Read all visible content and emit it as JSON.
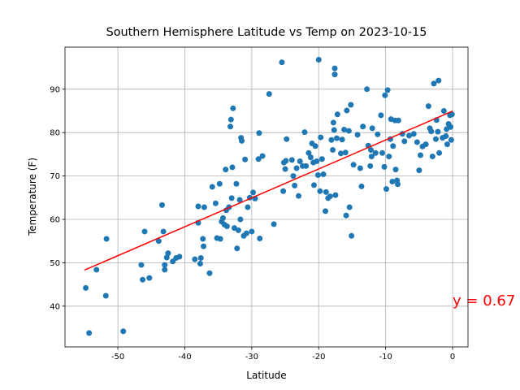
{
  "chart_data": {
    "type": "scatter",
    "title": "Southern Hemisphere Latitude vs Temp on 2023-10-15",
    "x_label": "Latitude",
    "y_label": "Temperature (F)",
    "xlim": [
      -57.9,
      2.3
    ],
    "ylim": [
      30.6,
      99.7
    ],
    "xticks": [
      -50,
      -40,
      -30,
      -20,
      -10,
      0
    ],
    "yticks": [
      40,
      50,
      60,
      70,
      80,
      90
    ],
    "grid": true,
    "color": "#1f77b4",
    "x": [
      -54.8,
      -54.3,
      -53.2,
      -51.7,
      -51.8,
      -49.2,
      -46.5,
      -46.3,
      -46,
      -45.3,
      -43.9,
      -43.4,
      -43.2,
      -43,
      -43,
      -42.7,
      -42.5,
      -41.8,
      -41.3,
      -40.8,
      -38.5,
      -38,
      -38,
      -37.7,
      -37.6,
      -37.3,
      -37.2,
      -37.1,
      -36.3,
      -35.9,
      -35.4,
      -35.2,
      -34.8,
      -34.7,
      -34.5,
      -34.3,
      -34.1,
      -33.9,
      -33.8,
      -33.7,
      -33.4,
      -33.2,
      -33.1,
      -33,
      -32.9,
      -32.8,
      -32.6,
      -32.3,
      -32.2,
      -32,
      -31.8,
      -31.7,
      -31.6,
      -31.5,
      -31.2,
      -31,
      -30.8,
      -30.6,
      -30.3,
      -30,
      -29.8,
      -29.5,
      -29,
      -28.9,
      -28.8,
      -28.4,
      -27.4,
      -26.7,
      -25.5,
      -25.3,
      -25.2,
      -25,
      -24.9,
      -24.8,
      -24,
      -23.8,
      -23.6,
      -23.3,
      -23,
      -22.8,
      -22.4,
      -22.1,
      -21.9,
      -21.5,
      -21.2,
      -21,
      -20.8,
      -20.7,
      -20.5,
      -20.3,
      -20.1,
      -20,
      -19.8,
      -19.7,
      -19.5,
      -19.3,
      -19,
      -18.9,
      -18.6,
      -18.3,
      -18.1,
      -17.9,
      -17.8,
      -17.7,
      -17.6,
      -17.6,
      -17.5,
      -17.3,
      -17.2,
      -16.7,
      -16.5,
      -16.2,
      -16,
      -15.9,
      -15.8,
      -15.5,
      -15.4,
      -15.2,
      -15.1,
      -14.8,
      -14.2,
      -13.8,
      -13.6,
      -13.4,
      -12.8,
      -12.6,
      -12.3,
      -12.2,
      -12.1,
      -12,
      -11.5,
      -11.2,
      -10.7,
      -10.5,
      -10.2,
      -10.1,
      -9.9,
      -9.7,
      -9.5,
      -9.3,
      -9.2,
      -9,
      -8.9,
      -8.6,
      -8.5,
      -8.3,
      -8.2,
      -8.1,
      -7.5,
      -7.2,
      -6.5,
      -5.8,
      -5.3,
      -5,
      -4.8,
      -4.5,
      -4,
      -3.6,
      -3.4,
      -3.2,
      -3,
      -2.8,
      -2.5,
      -2.4,
      -2.2,
      -2.1,
      -2,
      -1.5,
      -1.3,
      -1,
      -0.9,
      -0.8,
      -0.6,
      -0.4,
      -0.3,
      -0.2,
      -0.1
    ],
    "y": [
      44.2,
      33.8,
      48.4,
      55.5,
      42.4,
      34.2,
      49.5,
      46.1,
      57.2,
      46.5,
      55,
      63.3,
      57.2,
      48.4,
      49.5,
      51.2,
      52.2,
      50.3,
      51.1,
      51.4,
      50.8,
      63,
      59.2,
      49.8,
      51.1,
      55.5,
      53.8,
      62.8,
      47.6,
      67.5,
      63.7,
      55.7,
      68.2,
      55.5,
      59.5,
      60.3,
      58.8,
      71.5,
      62.1,
      58.4,
      62.8,
      81.4,
      83,
      64.9,
      72,
      85.6,
      58,
      68.2,
      53.3,
      57.5,
      64.5,
      60,
      78.8,
      78.1,
      56.2,
      73.8,
      56.8,
      62.8,
      65,
      57.2,
      66.2,
      64.8,
      73.9,
      79.9,
      55.6,
      74.6,
      88.9,
      58.9,
      96.2,
      66.5,
      73.1,
      71.6,
      73.5,
      78.5,
      73.7,
      70,
      67.8,
      71.8,
      65.4,
      73.4,
      72.3,
      80.1,
      72.3,
      75.3,
      74.3,
      77.5,
      73.1,
      67.9,
      76.9,
      73.4,
      70.2,
      96.8,
      66.5,
      78.9,
      73.9,
      70.4,
      61.9,
      66.3,
      64.9,
      65.3,
      78.3,
      76,
      82.3,
      80.6,
      94.8,
      93.4,
      65.6,
      78.7,
      84.2,
      75.2,
      78.4,
      80.7,
      75.4,
      60.9,
      85.1,
      80.4,
      62.8,
      86.4,
      56.2,
      72.6,
      79.5,
      71.8,
      67.6,
      81.4,
      90,
      77,
      72.3,
      76,
      74.5,
      81,
      75.3,
      79.6,
      84,
      75.3,
      72.1,
      88.6,
      67,
      89.8,
      74.5,
      78.5,
      83.1,
      68.7,
      76.9,
      82.8,
      71.5,
      69,
      68.1,
      82.8,
      79.7,
      78,
      79.3,
      79.7,
      77.8,
      71.3,
      74.8,
      76.8,
      77.3,
      86.1,
      81,
      80.3,
      74.5,
      91.3,
      78.5,
      82.9,
      80.2,
      92,
      75.3,
      78.8,
      85,
      79.2,
      80.8,
      77.3,
      82,
      84,
      81.3,
      78.3,
      84.2
    ],
    "regression": {
      "x": [
        -55,
        0
      ],
      "y": [
        48.3,
        84.96
      ],
      "color": "#ff0000"
    },
    "annotation": {
      "text": "y = 0.67",
      "x": 0,
      "y": 40,
      "color": "#ff0000"
    }
  }
}
